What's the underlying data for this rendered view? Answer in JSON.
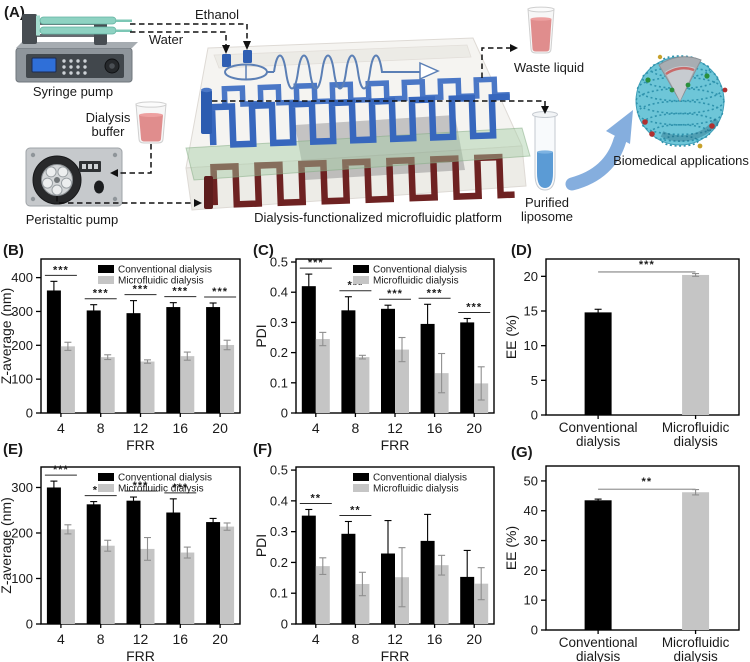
{
  "figure": {
    "panel_labels": {
      "a": "(A)"
    }
  },
  "panel_a": {
    "syringe_pump": "Syringe pump",
    "ethanol": "Ethanol",
    "water": "Water",
    "dialysis_buffer_line1": "Dialysis",
    "dialysis_buffer_line2": "buffer",
    "peristaltic_pump": "Peristaltic pump",
    "platform_caption": "Dialysis-functionalized microfluidic platform",
    "waste_liquid": "Waste liquid",
    "purified_line1": "Purified",
    "purified_line2": "liposome",
    "biomedical": "Biomedical applications"
  },
  "colors": {
    "conventional": "#000000",
    "microfluidic": "#c5c5c5",
    "error_conventional": "#000000",
    "error_microfluidic": "#8f8f8f",
    "sig_line_grouped": "#2a2a2a",
    "sig_line_pair": "#9a9a9a",
    "chip_blue": "#3767bd",
    "chip_red": "#6e2222",
    "liposome_teal": "#6ec6d8",
    "arrow_blue": "#85aede",
    "liquid_pink": "#e08d8d",
    "liquid_blue": "#5b9bd5"
  },
  "chart_data": [
    {
      "id": "B",
      "panel_label": "(B)",
      "type": "bar",
      "categories": [
        "4",
        "8",
        "12",
        "16",
        "20"
      ],
      "xlabel": "FRR",
      "ylabel": "Z-average (nm)",
      "ylim": [
        0,
        455
      ],
      "yticks": [
        0,
        100,
        200,
        300,
        400
      ],
      "grid": false,
      "legend_position": "top-center",
      "series": [
        {
          "name": "Conventional dialysis",
          "values": [
            362,
            303,
            295,
            313,
            313
          ],
          "errors": [
            27,
            17,
            37,
            13,
            12
          ]
        },
        {
          "name": "Microfluidic dialysis",
          "values": [
            197,
            165,
            152,
            168,
            201
          ],
          "errors": [
            12,
            7,
            5,
            12,
            14
          ]
        }
      ],
      "significance": [
        "***",
        "***",
        "***",
        "***",
        "***"
      ]
    },
    {
      "id": "C",
      "panel_label": "(C)",
      "type": "bar",
      "categories": [
        "4",
        "8",
        "12",
        "16",
        "20"
      ],
      "xlabel": "FRR",
      "ylabel": "PDI",
      "ylim": [
        0,
        0.51
      ],
      "yticks": [
        0,
        0.1,
        0.2,
        0.3,
        0.4,
        0.5
      ],
      "grid": false,
      "legend_position": "top-center",
      "series": [
        {
          "name": "Conventional dialysis",
          "values": [
            0.42,
            0.34,
            0.345,
            0.295,
            0.3
          ],
          "errors": [
            0.04,
            0.045,
            0.012,
            0.065,
            0.013
          ]
        },
        {
          "name": "Microfluidic dialysis",
          "values": [
            0.245,
            0.185,
            0.21,
            0.132,
            0.098
          ],
          "errors": [
            0.022,
            0.006,
            0.04,
            0.065,
            0.055
          ]
        }
      ],
      "significance": [
        "***",
        "***",
        "***",
        "***",
        "***"
      ]
    },
    {
      "id": "D",
      "panel_label": "(D)",
      "type": "bar",
      "categories": [
        "Conventional\ndialysis",
        "Microfluidic\ndialysis"
      ],
      "xlabel": "",
      "ylabel": "EE (%)",
      "ylim": [
        0,
        22.5
      ],
      "yticks": [
        0,
        5,
        10,
        15,
        20
      ],
      "grid": false,
      "values": [
        14.8,
        20.2
      ],
      "errors": [
        0.45,
        0.2
      ],
      "significance": "***"
    },
    {
      "id": "E",
      "panel_label": "(E)",
      "type": "bar",
      "categories": [
        "4",
        "8",
        "12",
        "16",
        "20"
      ],
      "xlabel": "FRR",
      "ylabel": "Z-average (nm)",
      "ylim": [
        0,
        345
      ],
      "yticks": [
        0,
        100,
        200,
        300
      ],
      "grid": false,
      "legend_position": "top-center",
      "series": [
        {
          "name": "Conventional dialysis",
          "values": [
            300,
            263,
            271,
            245,
            224
          ],
          "errors": [
            14,
            6,
            8,
            30,
            8
          ]
        },
        {
          "name": "Microfluidic dialysis",
          "values": [
            208,
            172,
            165,
            157,
            214
          ],
          "errors": [
            10,
            12,
            25,
            12,
            8
          ]
        }
      ],
      "significance": [
        "***",
        "***",
        "***",
        "***",
        ""
      ]
    },
    {
      "id": "F",
      "panel_label": "(F)",
      "type": "bar",
      "categories": [
        "4",
        "8",
        "12",
        "16",
        "20"
      ],
      "xlabel": "FRR",
      "ylabel": "PDI",
      "ylim": [
        0,
        0.51
      ],
      "yticks": [
        0,
        0.1,
        0.2,
        0.3,
        0.4,
        0.5
      ],
      "grid": false,
      "legend_position": "top-center",
      "series": [
        {
          "name": "Conventional dialysis",
          "values": [
            0.352,
            0.293,
            0.229,
            0.27,
            0.153
          ],
          "errors": [
            0.02,
            0.04,
            0.107,
            0.086,
            0.086
          ]
        },
        {
          "name": "Microfluidic dialysis",
          "values": [
            0.188,
            0.13,
            0.152,
            0.191,
            0.131
          ],
          "errors": [
            0.027,
            0.038,
            0.096,
            0.032,
            0.052
          ]
        }
      ],
      "significance": [
        "**",
        "**",
        "",
        "",
        ""
      ]
    },
    {
      "id": "G",
      "panel_label": "(G)",
      "type": "bar",
      "categories": [
        "Conventional\ndialysis",
        "Microfluidic\ndialysis"
      ],
      "xlabel": "",
      "ylabel": "EE (%)",
      "ylim": [
        0,
        55
      ],
      "yticks": [
        0,
        10,
        20,
        30,
        40,
        50
      ],
      "grid": false,
      "values": [
        43.5,
        46.2
      ],
      "errors": [
        0.4,
        0.9
      ],
      "significance": "**"
    }
  ]
}
